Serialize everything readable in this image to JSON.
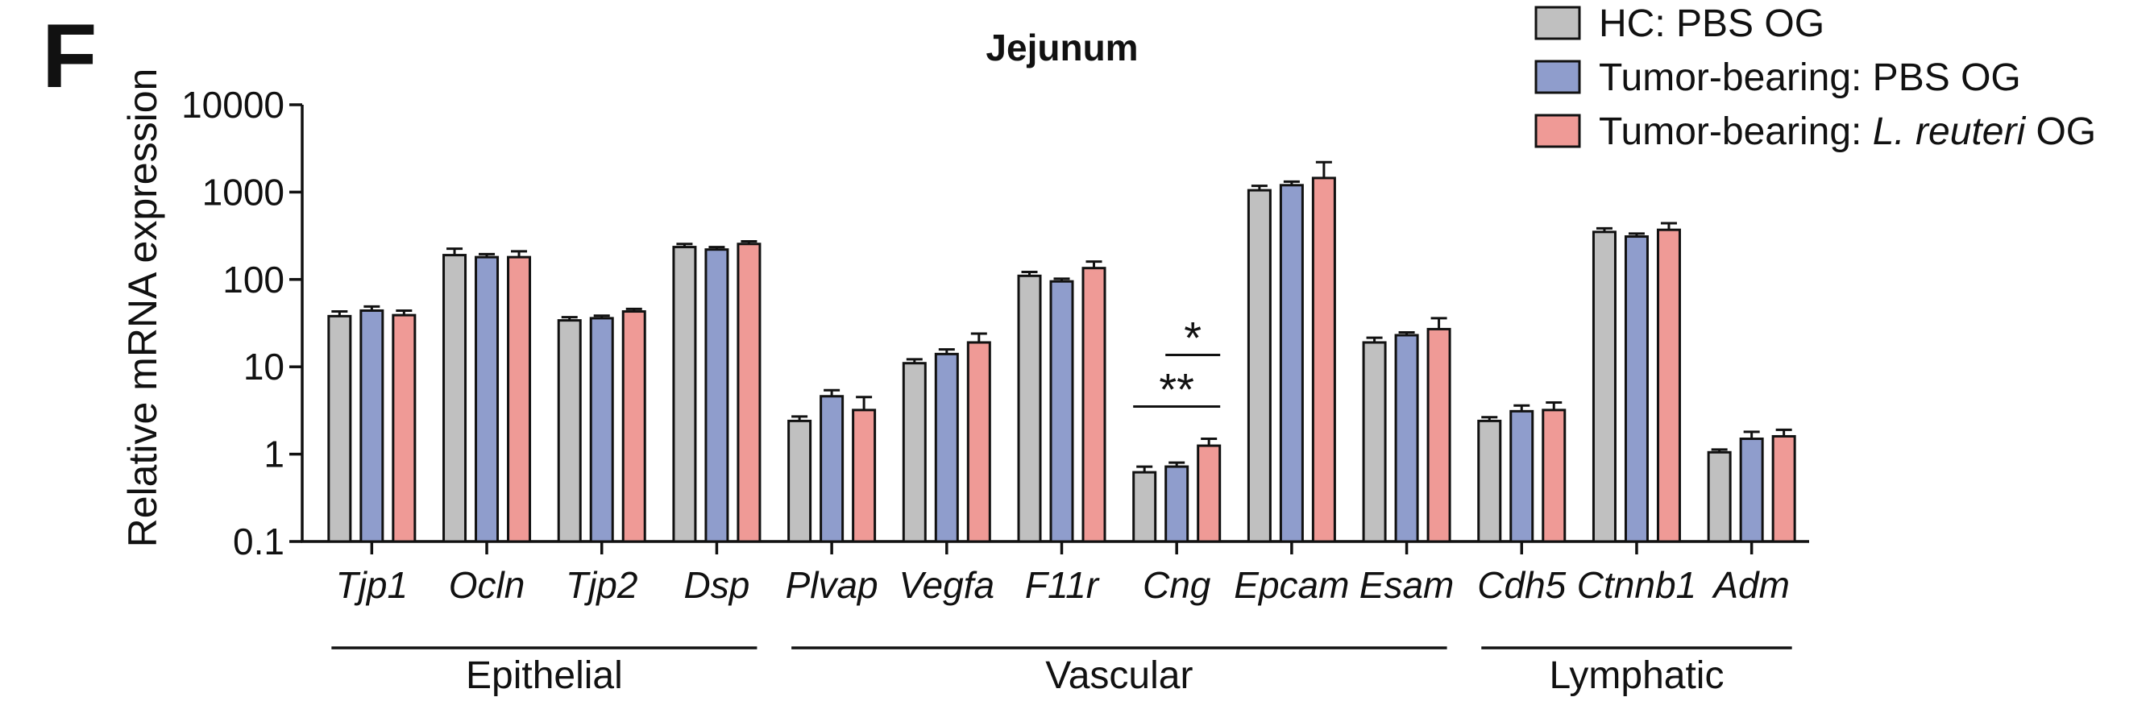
{
  "panel_label": "F",
  "chart_data": {
    "type": "bar",
    "title": "Jejunum",
    "xlabel": "",
    "ylabel": "Relative mRNA expression",
    "yscale": "log",
    "ylim": [
      0.1,
      10000
    ],
    "ytick_labels": [
      "0.1",
      "1",
      "10",
      "100",
      "1000",
      "10000"
    ],
    "categories": [
      "Tjp1",
      "Ocln",
      "Tjp2",
      "Dsp",
      "Plvap",
      "Vegfa",
      "F11r",
      "Cng",
      "Epcam",
      "Esam",
      "Cdh5",
      "Ctnnb1",
      "Adm"
    ],
    "series": [
      {
        "name": "HC: PBS OG",
        "color": "#c0c0c0",
        "values": [
          38,
          190,
          34,
          235,
          2.4,
          11,
          110,
          0.62,
          1050,
          19,
          2.4,
          350,
          1.05
        ],
        "errors": [
          5,
          35,
          3,
          20,
          0.3,
          1.2,
          12,
          0.1,
          130,
          2.5,
          0.25,
          35,
          0.08
        ]
      },
      {
        "name": "Tumor-bearing: PBS OG",
        "color": "#8f9dcc",
        "values": [
          44,
          180,
          36,
          220,
          4.6,
          14,
          95,
          0.72,
          1200,
          23,
          3.1,
          310,
          1.5
        ],
        "errors": [
          5,
          15,
          2.5,
          15,
          0.8,
          1.8,
          7,
          0.08,
          120,
          1.8,
          0.5,
          25,
          0.3
        ]
      },
      {
        "name": "Tumor-bearing: L. reuteri OG",
        "color": "#ef9a96",
        "values": [
          39,
          180,
          43,
          255,
          3.2,
          19,
          135,
          1.25,
          1450,
          27,
          3.2,
          370,
          1.6
        ],
        "errors": [
          5,
          30,
          3,
          18,
          1.3,
          5,
          25,
          0.25,
          750,
          9,
          0.7,
          70,
          0.3
        ]
      }
    ],
    "groups": [
      {
        "label": "Epithelial",
        "from": "Tjp1",
        "to": "Dsp"
      },
      {
        "label": "Vascular",
        "from": "Plvap",
        "to": "Esam"
      },
      {
        "label": "Lymphatic",
        "from": "Cdh5",
        "to": "Adm"
      }
    ],
    "annotations": [
      {
        "category": "Cng",
        "label": "**",
        "between": [
          "HC: PBS OG",
          "Tumor-bearing: L. reuteri OG"
        ]
      },
      {
        "category": "Cng",
        "label": "*",
        "between": [
          "Tumor-bearing: PBS OG",
          "Tumor-bearing: L. reuteri OG"
        ]
      }
    ],
    "legend": {
      "position": "top-right",
      "entries": [
        {
          "prefix": "HC: PBS OG",
          "italic": "",
          "suffix": ""
        },
        {
          "prefix": "Tumor-bearing: PBS OG",
          "italic": "",
          "suffix": ""
        },
        {
          "prefix": "Tumor-bearing: ",
          "italic": "L. reuteri",
          "suffix": " OG"
        }
      ]
    }
  }
}
